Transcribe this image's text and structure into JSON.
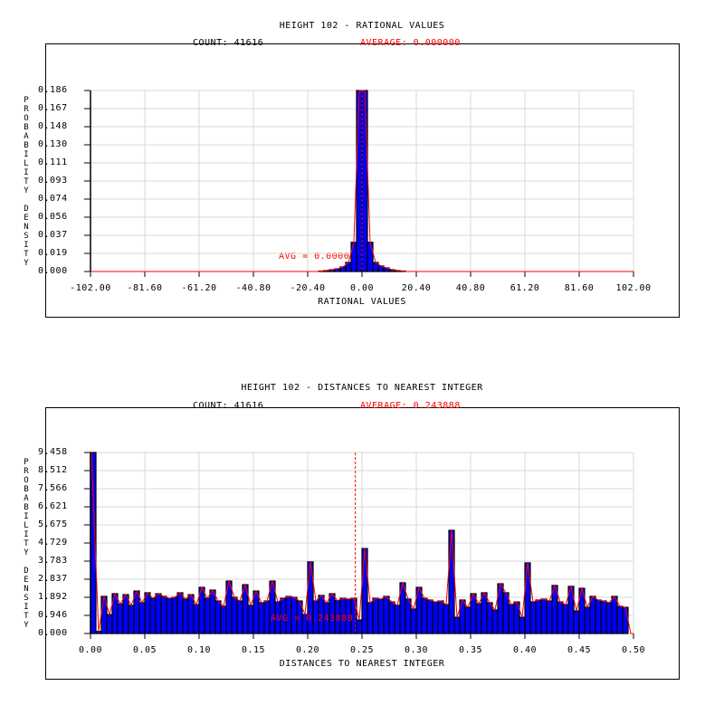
{
  "chart_data": [
    {
      "type": "bar",
      "title": "HEIGHT 102 - RATIONAL VALUES",
      "count_label": "COUNT: 41616",
      "average_label": "AVERAGE: 0.000000",
      "avg_annotation": "AVG = 0.000000",
      "average": 0.0,
      "xlabel": "RATIONAL VALUES",
      "ylabel": "PROBABILITY DENSITY",
      "xlim": [
        -102.0,
        102.0
      ],
      "ylim": [
        0.0,
        0.186
      ],
      "xticks": [
        "-102.00",
        "-81.60",
        "-61.20",
        "-40.80",
        "-20.40",
        "0.00",
        "20.40",
        "40.80",
        "61.20",
        "81.60",
        "102.00"
      ],
      "xtick_values": [
        -102,
        -81.6,
        -61.2,
        -40.8,
        -20.4,
        0,
        20.4,
        40.8,
        61.2,
        81.6,
        102
      ],
      "yticks": [
        "0.186",
        "0.167",
        "0.148",
        "0.130",
        "0.111",
        "0.093",
        "0.074",
        "0.056",
        "0.037",
        "0.019",
        "0.000"
      ],
      "grid": true,
      "bin_width": 2.04,
      "bin_starts": [
        -16.32,
        -14.28,
        -12.24,
        -10.2,
        -8.16,
        -6.12,
        -4.08,
        -2.04,
        0,
        2.04,
        4.08,
        6.12,
        8.16,
        10.2,
        12.24,
        14.28
      ],
      "values": [
        0.0005,
        0.001,
        0.0019,
        0.0028,
        0.0047,
        0.0093,
        0.03,
        0.186,
        0.186,
        0.03,
        0.0093,
        0.0056,
        0.0037,
        0.0019,
        0.001,
        0.0005
      ],
      "colors": {
        "bar": "#0000ff",
        "edge": "#000000",
        "curve": "#ff0000",
        "grid": "#d9d9d9"
      }
    },
    {
      "type": "bar",
      "title": "HEIGHT 102 - DISTANCES TO NEAREST INTEGER",
      "count_label": "COUNT: 41616",
      "average_label": "AVERAGE: 0.243888",
      "avg_annotation": "AVG = 0.243888",
      "average": 0.243888,
      "xlabel": "DISTANCES TO NEAREST INTEGER",
      "ylabel": "PROBABILITY DENSITY",
      "xlim": [
        0.0,
        0.5
      ],
      "ylim": [
        0.0,
        9.458
      ],
      "xticks": [
        "0.00",
        "0.05",
        "0.10",
        "0.15",
        "0.20",
        "0.25",
        "0.30",
        "0.35",
        "0.40",
        "0.45",
        "0.50"
      ],
      "xtick_values": [
        0,
        0.05,
        0.1,
        0.15,
        0.2,
        0.25,
        0.3,
        0.35,
        0.4,
        0.45,
        0.5
      ],
      "yticks": [
        "9.458",
        "8.512",
        "7.566",
        "6.621",
        "5.675",
        "4.729",
        "3.783",
        "2.837",
        "1.892",
        "0.946",
        "0.000"
      ],
      "grid": true,
      "bin_width": 0.005,
      "bin_start": 0.0,
      "values": [
        9.458,
        0.11,
        1.94,
        0.99,
        2.08,
        1.55,
        2.03,
        1.47,
        2.22,
        1.61,
        2.13,
        1.84,
        2.08,
        1.94,
        1.84,
        1.89,
        2.13,
        1.8,
        2.03,
        1.51,
        2.41,
        1.84,
        2.27,
        1.7,
        1.42,
        2.74,
        1.89,
        1.7,
        2.55,
        1.47,
        2.22,
        1.61,
        1.7,
        2.74,
        1.65,
        1.84,
        1.94,
        1.89,
        1.7,
        0.99,
        3.74,
        1.7,
        1.99,
        1.61,
        2.08,
        1.72,
        1.84,
        1.8,
        1.84,
        0.71,
        4.44,
        1.61,
        1.84,
        1.8,
        1.94,
        1.65,
        1.47,
        2.65,
        1.8,
        1.28,
        2.41,
        1.84,
        1.75,
        1.65,
        1.7,
        1.51,
        5.39,
        0.85,
        1.75,
        1.37,
        2.08,
        1.56,
        2.13,
        1.61,
        1.23,
        2.6,
        2.13,
        1.51,
        1.65,
        0.85,
        3.69,
        1.65,
        1.75,
        1.8,
        1.7,
        2.51,
        1.65,
        1.51,
        2.46,
        1.18,
        2.36,
        1.37,
        1.94,
        1.75,
        1.7,
        1.61,
        1.94,
        1.42,
        1.37,
        0.0
      ],
      "colors": {
        "bar": "#0000ff",
        "edge": "#000000",
        "curve": "#ff0000",
        "grid": "#d9d9d9"
      }
    }
  ]
}
